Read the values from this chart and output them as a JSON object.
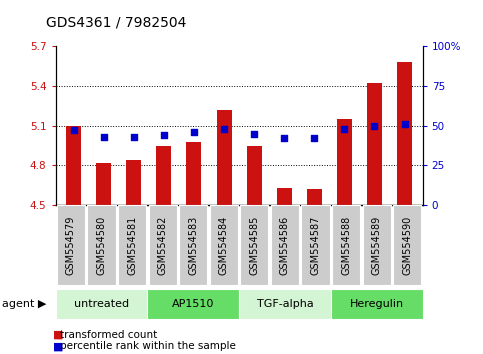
{
  "title": "GDS4361 / 7982504",
  "categories": [
    "GSM554579",
    "GSM554580",
    "GSM554581",
    "GSM554582",
    "GSM554583",
    "GSM554584",
    "GSM554585",
    "GSM554586",
    "GSM554587",
    "GSM554588",
    "GSM554589",
    "GSM554590"
  ],
  "bar_values": [
    5.1,
    4.82,
    4.84,
    4.95,
    4.98,
    5.22,
    4.95,
    4.63,
    4.62,
    5.15,
    5.42,
    5.58
  ],
  "dot_values": [
    47,
    43,
    43,
    44,
    46,
    48,
    45,
    42,
    42,
    48,
    50,
    51
  ],
  "ylim": [
    4.5,
    5.7
  ],
  "yticks_left": [
    4.5,
    4.8,
    5.1,
    5.4,
    5.7
  ],
  "yticks_right": [
    0,
    25,
    50,
    75,
    100
  ],
  "bar_color": "#cc1111",
  "dot_color": "#0000cc",
  "plot_bg": "#ffffff",
  "tick_box_bg": "#cccccc",
  "grid_lines": [
    4.8,
    5.1,
    5.4
  ],
  "agent_groups": [
    {
      "label": "untreated",
      "start": 0,
      "end": 3,
      "color": "#d4f5d4"
    },
    {
      "label": "AP1510",
      "start": 3,
      "end": 6,
      "color": "#66dd66"
    },
    {
      "label": "TGF-alpha",
      "start": 6,
      "end": 9,
      "color": "#d4f5d4"
    },
    {
      "label": "Heregulin",
      "start": 9,
      "end": 12,
      "color": "#66dd66"
    }
  ],
  "legend_bar_label": "transformed count",
  "legend_dot_label": "percentile rank within the sample",
  "title_fontsize": 10,
  "tick_fontsize": 7.5,
  "xlabel_fontsize": 7,
  "agent_fontsize": 8
}
